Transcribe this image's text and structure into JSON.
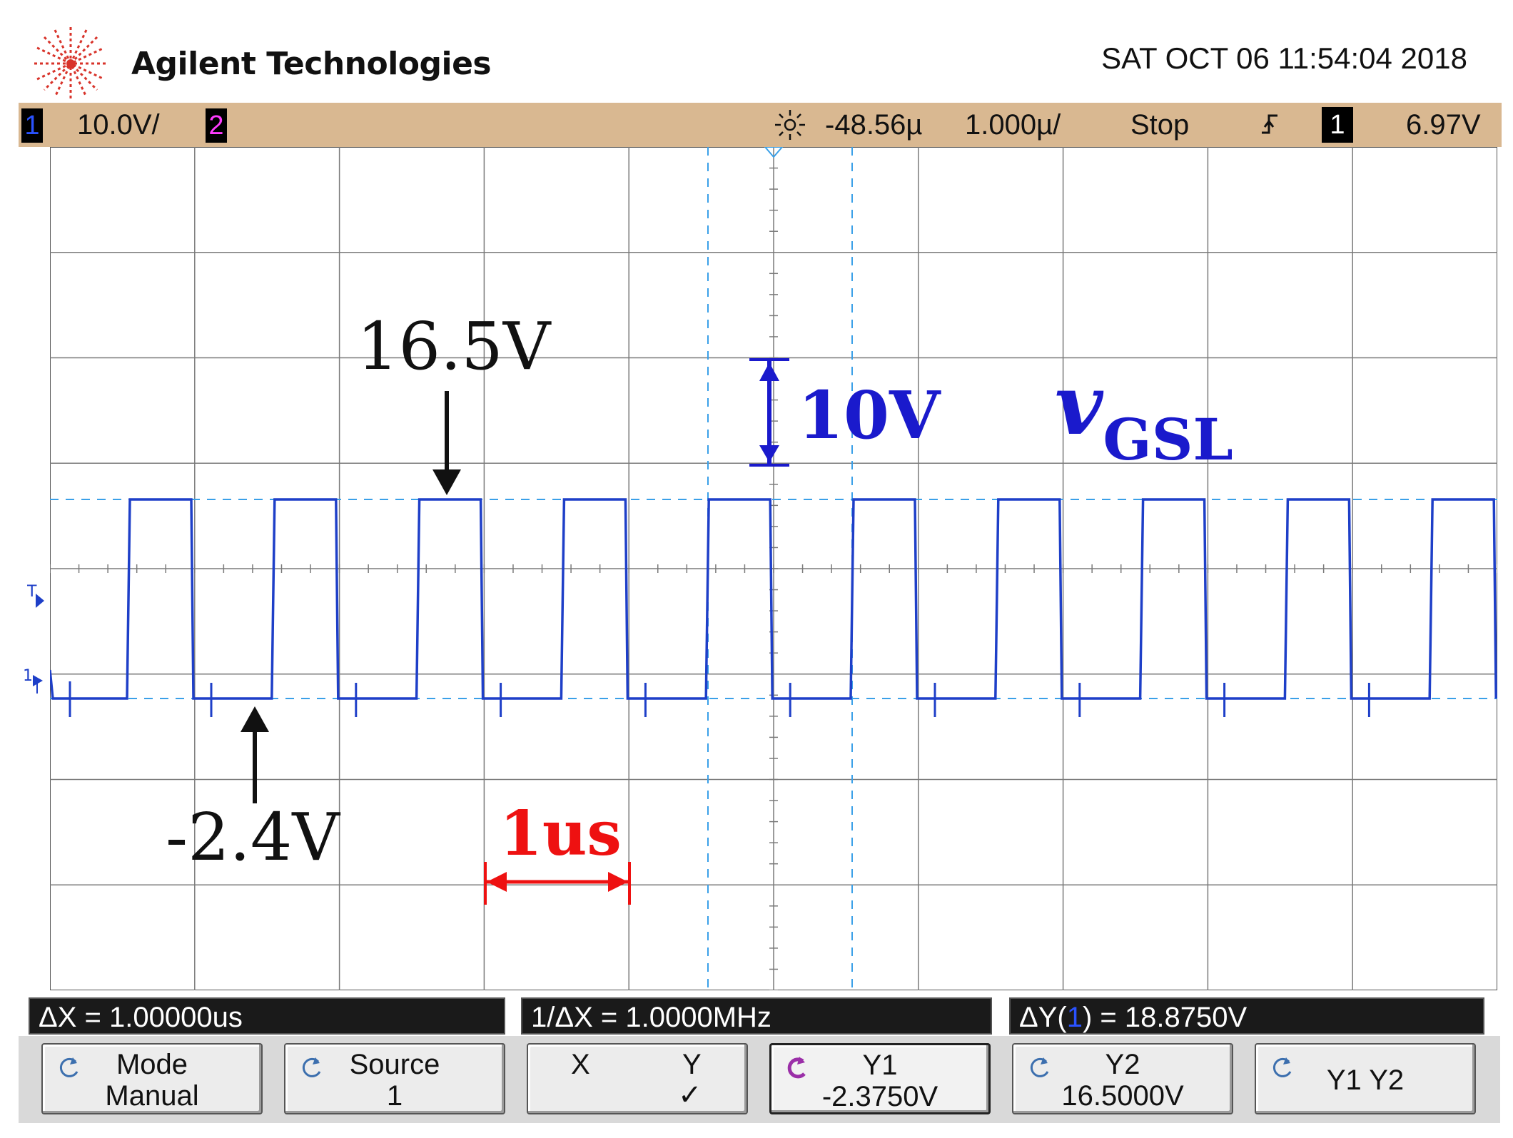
{
  "header": {
    "brand": "Agilent Technologies",
    "timestamp": "SAT OCT 06 11:54:04 2018"
  },
  "statusbar": {
    "ch1_label": "1",
    "ch1_scale": "10.0V/",
    "ch2_label": "2",
    "time_offset": "-48.56µ",
    "time_scale": "1.000µ/",
    "run_state": "Stop",
    "trigger_channel": "1",
    "trigger_level": "6.97V",
    "colors": {
      "bar": "#d9b891",
      "ch1": "#2a52ff",
      "ch2": "#ff3cff"
    }
  },
  "screen": {
    "trace_color": "#1e3fc8",
    "side_marker_t": "T",
    "side_marker_1": "1"
  },
  "annotations": {
    "high_level": "16.5V",
    "low_level": "-2.4V",
    "vertical_scale": "10V",
    "period": "1us",
    "signal_name_main": "v",
    "signal_name_sub": "GSL",
    "colors": {
      "signal": "#1a1acc",
      "period": "#ee1111",
      "text": "#111111"
    }
  },
  "measurements": {
    "dx": "ΔX = 1.00000us",
    "inv_dx": "1/ΔX = 1.0000MHz",
    "dy_prefix": "ΔY(",
    "dy_channel": "1",
    "dy_suffix": ") = 18.8750V"
  },
  "softkeys": [
    {
      "line1": "Mode",
      "line2": "Manual",
      "icon": "rotate-icon"
    },
    {
      "line1": "Source",
      "line2": "1",
      "icon": "rotate-icon"
    },
    {
      "x_label": "X",
      "y_label": "Y",
      "check": "✓"
    },
    {
      "line1": "Y1",
      "line2": "-2.3750V",
      "icon": "knob-icon",
      "active": true
    },
    {
      "line1": "Y2",
      "line2": "16.5000V",
      "icon": "rotate-icon"
    },
    {
      "line1": "Y1 Y2",
      "line2": "",
      "icon": "rotate-icon"
    }
  ]
}
